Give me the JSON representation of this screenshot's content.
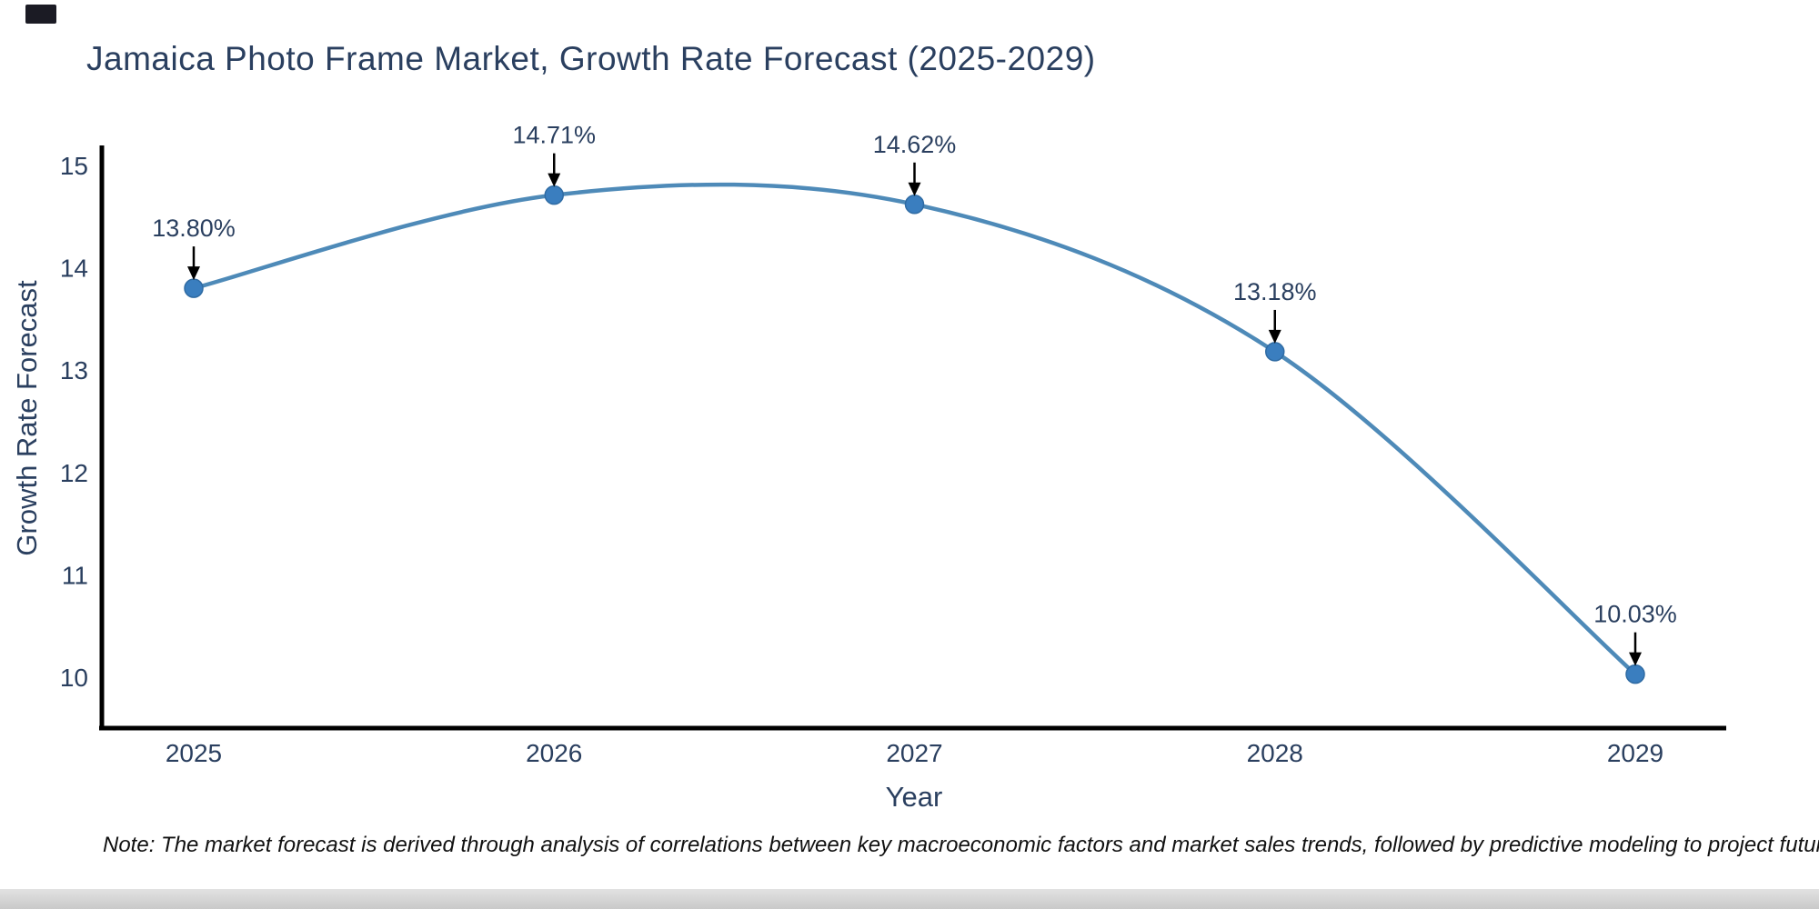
{
  "title": "Jamaica Photo Frame Market, Growth Rate Forecast (2025-2029)",
  "note": "Note: The market forecast is derived through analysis of correlations between key macroeconomic factors and market sales trends, followed by predictive modeling to project future sales",
  "chart_data": {
    "type": "line",
    "line_shape": "spline",
    "title": "Jamaica Photo Frame Market, Growth Rate Forecast (2025-2029)",
    "xlabel": "Year",
    "ylabel": "Growth Rate Forecast",
    "x": [
      2025,
      2026,
      2027,
      2028,
      2029
    ],
    "values": [
      13.8,
      14.71,
      14.62,
      13.18,
      10.03
    ],
    "point_labels": [
      "13.80%",
      "14.71%",
      "14.62%",
      "13.18%",
      "10.03%"
    ],
    "yticks": [
      10,
      11,
      12,
      13,
      14,
      15
    ],
    "ylim": [
      9.49,
      15.2
    ],
    "grid": false,
    "legend": false,
    "colors": {
      "line": "#4e8ab8",
      "marker": "#3a7ebf",
      "marker_edge": "#2f6ba3",
      "axis": "#000000",
      "text": "#2a3f5f",
      "annotation_arrow": "#000000"
    }
  }
}
